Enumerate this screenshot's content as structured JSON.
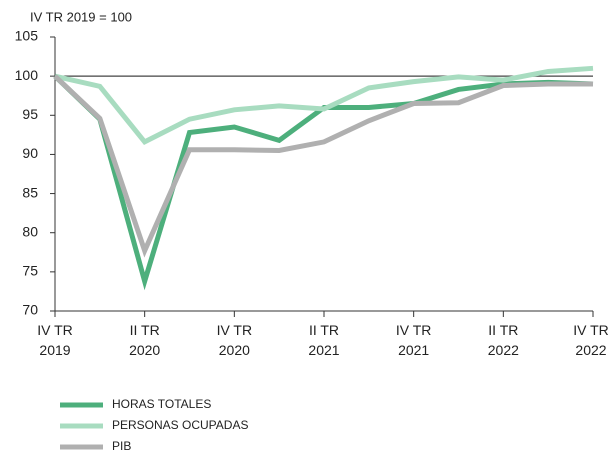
{
  "chart_data": {
    "type": "line",
    "annotation": "IV TR 2019 = 100",
    "categories": [
      "IV TR 2019",
      null,
      "II TR 2020",
      null,
      "IV TR 2020",
      null,
      "II TR 2021",
      null,
      "IV TR 2021",
      null,
      "II TR 2022",
      null,
      "IV TR 2022"
    ],
    "series": [
      {
        "name": "HORAS TOTALES",
        "color": "#4daf7c",
        "values": [
          100,
          94.5,
          73.8,
          92.8,
          93.5,
          91.8,
          96.0,
          96.0,
          96.5,
          98.3,
          99.0,
          99.2,
          99.0
        ]
      },
      {
        "name": "PERSONAS OCUPADAS",
        "color": "#a8dcc0",
        "values": [
          100,
          98.7,
          91.6,
          94.5,
          95.7,
          96.2,
          95.8,
          98.5,
          99.3,
          99.9,
          99.5,
          100.6,
          101.0
        ]
      },
      {
        "name": "PIB",
        "color": "#b0b0b0",
        "values": [
          100,
          94.6,
          77.7,
          90.6,
          90.6,
          90.5,
          91.6,
          94.3,
          96.5,
          96.6,
          98.8,
          99.0,
          99.0
        ]
      }
    ],
    "ylim": [
      70,
      105
    ],
    "yticks": [
      70,
      75,
      80,
      85,
      90,
      95,
      100,
      105
    ],
    "reference_line": 100
  }
}
